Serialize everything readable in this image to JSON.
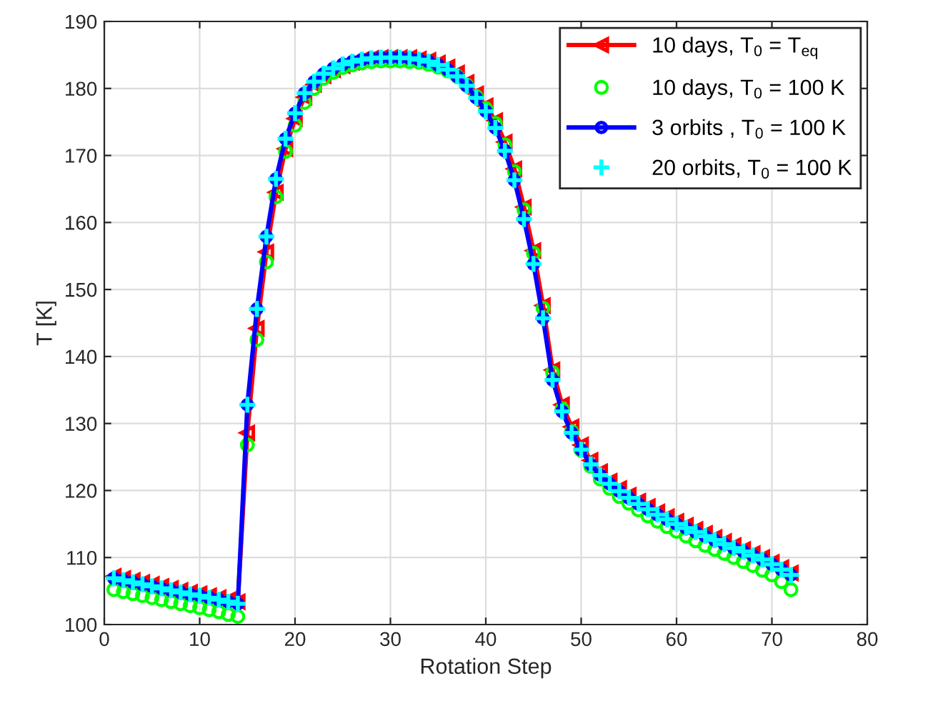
{
  "chart_data": {
    "type": "line",
    "xlabel": "Rotation Step",
    "ylabel": "T [K]",
    "x": [
      1,
      2,
      3,
      4,
      5,
      6,
      7,
      8,
      9,
      10,
      11,
      12,
      13,
      14,
      15,
      16,
      17,
      18,
      19,
      20,
      21,
      22,
      23,
      24,
      25,
      26,
      27,
      28,
      29,
      30,
      31,
      32,
      33,
      34,
      35,
      36,
      37,
      38,
      39,
      40,
      41,
      42,
      43,
      44,
      45,
      46,
      47,
      48,
      49,
      50,
      51,
      52,
      53,
      54,
      55,
      56,
      57,
      58,
      59,
      60,
      61,
      62,
      63,
      64,
      65,
      66,
      67,
      68,
      69,
      70,
      71,
      72
    ],
    "xlim": [
      0,
      80
    ],
    "xticks": [
      0,
      10,
      20,
      30,
      40,
      50,
      60,
      70,
      80
    ],
    "ylim": [
      100,
      190
    ],
    "yticks": [
      100,
      110,
      120,
      130,
      140,
      150,
      160,
      170,
      180,
      190
    ],
    "grid": true,
    "legend": "top right",
    "series": [
      {
        "name": "10 days, T$_{0}$ = T$_{eq}$",
        "color": "#ff0000",
        "marker": "triangle",
        "line_style": "solid",
        "values": [
          107.2,
          106.9,
          106.6,
          106.3,
          106.0,
          105.7,
          105.4,
          105.1,
          104.8,
          104.6,
          104.3,
          104.0,
          103.7,
          103.4,
          128.6,
          144.2,
          155.6,
          164.5,
          171.0,
          175.5,
          178.7,
          180.6,
          181.9,
          182.8,
          183.4,
          183.9,
          184.3,
          184.5,
          184.6,
          184.6,
          184.6,
          184.6,
          184.4,
          184.2,
          183.8,
          183.2,
          182.3,
          180.9,
          179.2,
          177.4,
          175.2,
          172.0,
          168.0,
          162.3,
          155.8,
          147.6,
          138.0,
          132.8,
          129.5,
          126.8,
          124.5,
          122.8,
          121.4,
          120.3,
          119.3,
          118.4,
          117.6,
          116.8,
          116.1,
          115.4,
          114.8,
          114.2,
          113.6,
          113.0,
          112.4,
          111.8,
          111.2,
          110.6,
          110.0,
          109.3,
          108.5,
          107.7
        ]
      },
      {
        "name": "10 days, T$_{0}$ = 100 K",
        "color": "#00ff00",
        "type": "scatter",
        "marker": "circle",
        "values": [
          105.2,
          104.9,
          104.6,
          104.3,
          104.0,
          103.7,
          103.4,
          103.1,
          102.8,
          102.5,
          102.2,
          101.9,
          101.5,
          101.2,
          126.8,
          142.5,
          154.1,
          163.8,
          170.6,
          174.5,
          177.9,
          180.0,
          181.5,
          182.4,
          183.1,
          183.5,
          183.8,
          184.0,
          184.1,
          184.1,
          184.1,
          184.0,
          183.9,
          183.6,
          183.2,
          182.6,
          181.8,
          180.5,
          178.8,
          177.0,
          174.8,
          171.6,
          167.6,
          161.9,
          155.4,
          147.2,
          137.6,
          132.2,
          128.8,
          126.0,
          123.6,
          121.7,
          120.3,
          119.1,
          118.1,
          117.1,
          116.2,
          115.4,
          114.6,
          113.9,
          113.2,
          112.5,
          111.8,
          111.2,
          110.6,
          110.0,
          109.4,
          108.8,
          108.1,
          107.4,
          106.4,
          105.2
        ]
      },
      {
        "name": "3 orbits , T$_{0}$ = 100 K",
        "color": "#0000ff",
        "marker": "circle",
        "line_style": "solid",
        "values": [
          106.9,
          106.6,
          106.3,
          106.0,
          105.7,
          105.4,
          105.1,
          104.8,
          104.5,
          104.3,
          104.0,
          103.7,
          103.4,
          103.1,
          132.8,
          147.1,
          157.9,
          166.5,
          172.5,
          176.3,
          179.3,
          181.0,
          182.2,
          183.0,
          183.6,
          184.0,
          184.3,
          184.5,
          184.6,
          184.6,
          184.6,
          184.5,
          184.3,
          184.0,
          183.5,
          182.8,
          181.8,
          180.4,
          178.6,
          176.6,
          174.1,
          170.7,
          166.3,
          160.5,
          153.8,
          145.7,
          136.5,
          131.8,
          128.6,
          126.1,
          123.9,
          122.3,
          121.0,
          119.9,
          118.9,
          118.0,
          117.2,
          116.4,
          115.7,
          115.0,
          114.4,
          113.8,
          113.2,
          112.6,
          112.0,
          111.4,
          110.9,
          110.3,
          109.7,
          109.0,
          108.2,
          107.4
        ]
      },
      {
        "name": "20 orbits, T$_{0}$ = 100 K",
        "color": "#00ffff",
        "type": "scatter",
        "marker": "cross",
        "values": [
          106.9,
          106.6,
          106.3,
          106.0,
          105.7,
          105.4,
          105.1,
          104.8,
          104.5,
          104.3,
          104.0,
          103.7,
          103.4,
          103.1,
          132.8,
          147.1,
          157.9,
          166.5,
          172.5,
          176.3,
          179.3,
          181.0,
          182.2,
          183.0,
          183.6,
          184.0,
          184.3,
          184.5,
          184.6,
          184.6,
          184.6,
          184.5,
          184.3,
          184.0,
          183.5,
          182.8,
          181.8,
          180.4,
          178.6,
          176.6,
          174.1,
          170.7,
          166.3,
          160.5,
          153.8,
          145.7,
          136.5,
          131.8,
          128.6,
          126.1,
          123.9,
          122.3,
          121.0,
          119.9,
          118.9,
          118.0,
          117.2,
          116.4,
          115.7,
          115.0,
          114.4,
          113.8,
          113.2,
          112.6,
          112.0,
          111.4,
          110.9,
          110.3,
          109.7,
          109.0,
          108.2,
          107.4
        ]
      }
    ]
  }
}
